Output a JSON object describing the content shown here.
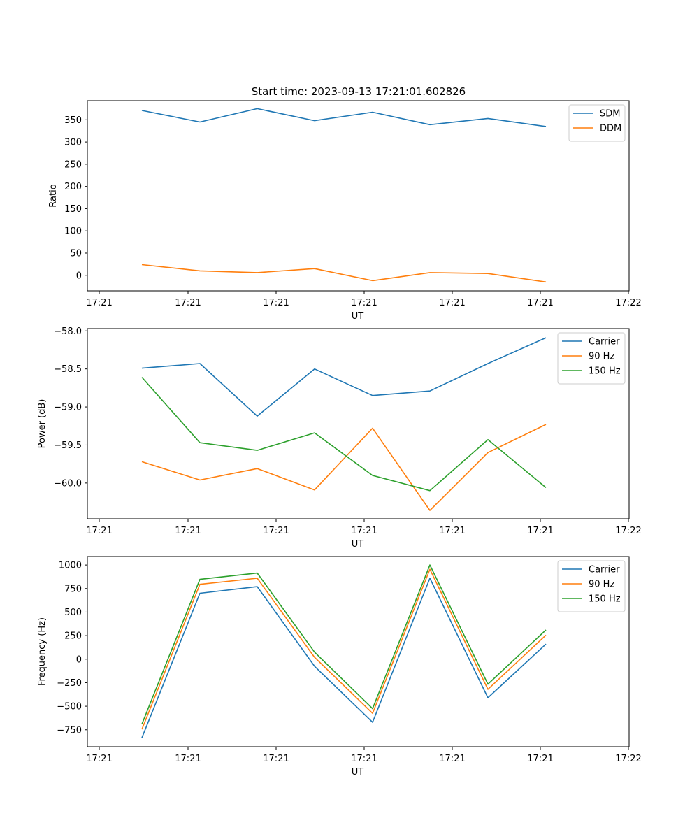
{
  "chart_data": [
    {
      "type": "line",
      "title": "Start time: 2023-09-13 17:21:01.602826",
      "xlabel": "UT",
      "ylabel": "Ratio",
      "x_tick_labels": [
        "17:21",
        "17:21",
        "17:21",
        "17:21",
        "17:21",
        "17:21",
        "17:22"
      ],
      "y_ticks": [
        0,
        50,
        100,
        150,
        200,
        250,
        300,
        350
      ],
      "ylim": [
        -35,
        393
      ],
      "legend_position": "upper-right",
      "series": [
        {
          "name": "SDM",
          "color": "#1f77b4",
          "values": [
            371,
            345,
            375,
            348,
            367,
            339,
            353,
            335
          ]
        },
        {
          "name": "DDM",
          "color": "#ff7f0e",
          "values": [
            24,
            10,
            6,
            15,
            -12,
            6,
            4,
            -15
          ]
        }
      ]
    },
    {
      "type": "line",
      "title": "",
      "xlabel": "UT",
      "ylabel": "Power (dB)",
      "x_tick_labels": [
        "17:21",
        "17:21",
        "17:21",
        "17:21",
        "17:21",
        "17:21",
        "17:22"
      ],
      "y_ticks": [
        -60.0,
        -59.5,
        -59.0,
        -58.5,
        -58.0
      ],
      "y_tick_labels": [
        "−60.0",
        "−59.5",
        "−59.0",
        "−58.5",
        "−58.0"
      ],
      "ylim": [
        -60.47,
        -57.97
      ],
      "legend_position": "upper-right",
      "series": [
        {
          "name": "Carrier",
          "color": "#1f77b4",
          "values": [
            -58.49,
            -58.43,
            -59.12,
            -58.5,
            -58.85,
            -58.79,
            -58.43,
            -58.09
          ]
        },
        {
          "name": "90 Hz",
          "color": "#ff7f0e",
          "values": [
            -59.72,
            -59.96,
            -59.81,
            -60.09,
            -59.28,
            -60.36,
            -59.6,
            -59.23
          ]
        },
        {
          "name": "150 Hz",
          "color": "#2ca02c",
          "values": [
            -58.61,
            -59.47,
            -59.57,
            -59.34,
            -59.9,
            -60.1,
            -59.43,
            -60.06
          ]
        }
      ]
    },
    {
      "type": "line",
      "title": "",
      "xlabel": "UT",
      "ylabel": "Frequency (Hz)",
      "x_tick_labels": [
        "17:21",
        "17:21",
        "17:21",
        "17:21",
        "17:21",
        "17:21",
        "17:22"
      ],
      "y_ticks": [
        -750,
        -500,
        -250,
        0,
        250,
        500,
        750,
        1000
      ],
      "y_tick_labels": [
        "−750",
        "−500",
        "−250",
        "0",
        "250",
        "500",
        "750",
        "1000"
      ],
      "ylim": [
        -930,
        1090
      ],
      "legend_position": "upper-right",
      "series": [
        {
          "name": "Carrier",
          "color": "#1f77b4",
          "values": [
            -835,
            700,
            770,
            -75,
            -670,
            860,
            -410,
            160
          ]
        },
        {
          "name": "90 Hz",
          "color": "#ff7f0e",
          "values": [
            -745,
            795,
            860,
            20,
            -575,
            955,
            -320,
            255
          ]
        },
        {
          "name": "150 Hz",
          "color": "#2ca02c",
          "values": [
            -690,
            848,
            915,
            75,
            -525,
            1000,
            -265,
            310
          ]
        }
      ]
    }
  ]
}
